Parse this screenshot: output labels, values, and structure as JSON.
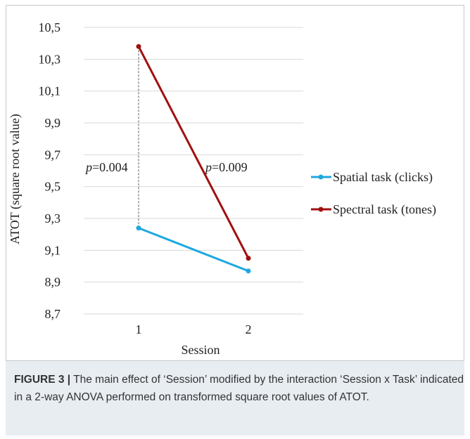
{
  "chart_data": {
    "type": "line",
    "xlabel": "Session",
    "ylabel": "ATOT (square root value)",
    "categories": [
      "1",
      "2"
    ],
    "ylim": [
      8.7,
      10.5
    ],
    "yticks": [
      "8,7",
      "8,9",
      "9,1",
      "9,3",
      "9,5",
      "9,7",
      "9,9",
      "10,1",
      "10,3",
      "10,5"
    ],
    "grid": true,
    "legend_position": "right",
    "series": [
      {
        "name": "Spatial task (clicks)",
        "values": [
          9.24,
          8.97
        ],
        "color": "#1ea8e0"
      },
      {
        "name": "Spectral task (tones)",
        "values": [
          10.38,
          9.05
        ],
        "color": "#a01010"
      }
    ],
    "annotations": [
      {
        "italic": "p",
        "text": "=0.004"
      },
      {
        "italic": "p",
        "text": "=0.009"
      }
    ]
  },
  "caption": {
    "label": "FIGURE 3 |",
    "text": " The main effect of ‘Session’ modified by the interaction ‘Session x Task’ indicated in a 2-way ANOVA performed on transformed square root values of ATOT."
  }
}
